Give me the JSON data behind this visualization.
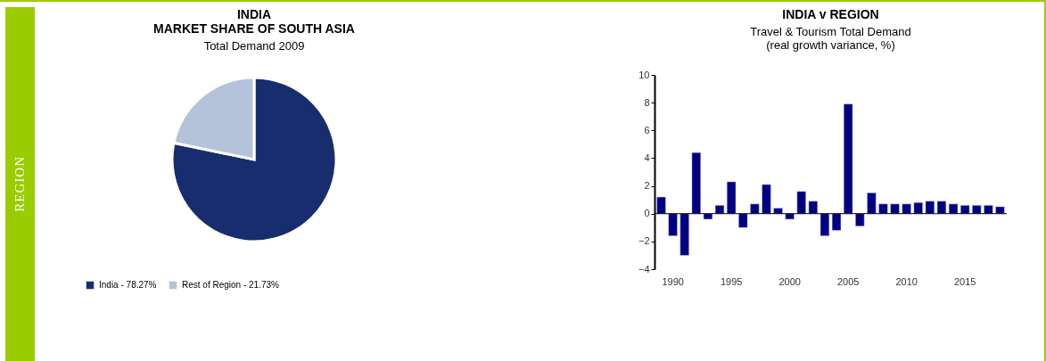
{
  "chart_data": [
    {
      "type": "pie",
      "title": "INDIA\nMARKET SHARE OF SOUTH ASIA",
      "subtitle": "Total Demand 2009",
      "categories": [
        "India - 78.27%",
        "Rest of Region - 21.73%"
      ],
      "values": [
        78.27,
        21.73
      ],
      "colors": [
        "#172d6e",
        "#b5c3da"
      ],
      "legend": "bottom",
      "annotations": [
        "REGION"
      ]
    },
    {
      "type": "bar",
      "title": "INDIA v REGION",
      "subtitle": "Travel & Tourism Total Demand\n(real growth variance, %)",
      "categories": [
        null,
        "1990",
        null,
        null,
        null,
        null,
        "1995",
        null,
        null,
        null,
        null,
        "2000",
        null,
        null,
        null,
        null,
        "2005",
        null,
        null,
        null,
        null,
        "2010",
        null,
        null,
        null,
        null,
        "2015",
        null,
        null,
        null
      ],
      "series": [
        {
          "color": "#000080",
          "values": [
            1.2,
            -1.6,
            -3.0,
            4.4,
            -0.4,
            0.6,
            2.3,
            -1.0,
            0.7,
            2.1,
            0.4,
            -0.4,
            1.6,
            0.9,
            -1.6,
            -1.2,
            7.9,
            -0.9,
            1.5,
            0.7,
            0.7,
            0.7,
            0.8,
            0.9,
            0.9,
            0.7,
            0.6,
            0.6,
            0.6,
            0.5
          ]
        }
      ],
      "ylim": [
        -4,
        10
      ],
      "yticks": [
        -4,
        -2,
        0,
        2,
        4,
        6,
        8,
        10
      ]
    }
  ]
}
